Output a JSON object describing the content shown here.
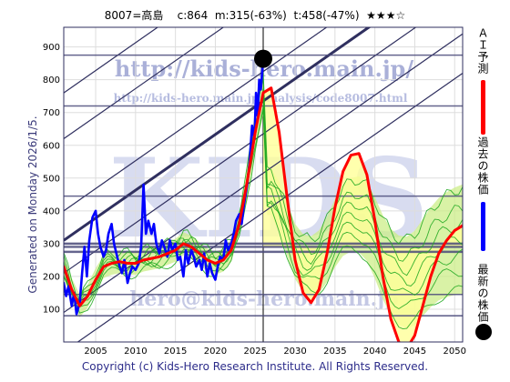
{
  "header": {
    "code_name": "8007=高島",
    "current": "c:864",
    "min": "m:315(-63%)",
    "target": "t:458(-47%)",
    "rating": "★★★☆"
  },
  "side_text": "Generated on Monday 2026/1/5.",
  "footer_text": "Copyright (c) Kids-Hero Research Institute. All Rights Reserved.",
  "watermarks": {
    "url": "http://kids-hero.main.jp/",
    "sub_url": "http://kids-hero.main.jp/analysis/code8007.html",
    "logo": "KIDS",
    "email": "hero@kids-hero.main.jp"
  },
  "legend": {
    "ai": "ＡＩ予測",
    "past": "過去の株価",
    "latest": "最新の株価"
  },
  "colors": {
    "frame": "#2f2f5f",
    "past_line": "#0000ff",
    "ai_line": "#ff0000",
    "ensemble": "#22aa22",
    "band_fill": "#ccee88",
    "yellow_fill": "#ffff99",
    "marker": "#000000"
  },
  "chart_data": {
    "type": "line",
    "xlim": [
      2001,
      2051
    ],
    "ylim": [
      0,
      960
    ],
    "xticks": [
      2005,
      2010,
      2015,
      2020,
      2025,
      2030,
      2035,
      2040,
      2045,
      2050
    ],
    "yticks": [
      100,
      200,
      300,
      400,
      500,
      600,
      700,
      800,
      900
    ],
    "horizontal_levels": [
      875,
      720,
      445,
      300,
      290,
      275,
      145,
      80
    ],
    "current_point": {
      "x": 2026.0,
      "y": 864
    },
    "series": [
      {
        "legend_key": "past",
        "x": [
          2001.0,
          2001.3,
          2001.6,
          2002.0,
          2002.3,
          2002.6,
          2003.0,
          2003.3,
          2003.6,
          2003.9,
          2004.2,
          2004.6,
          2005.0,
          2005.3,
          2005.6,
          2006.0,
          2006.3,
          2006.6,
          2007.0,
          2007.3,
          2007.6,
          2008.0,
          2008.3,
          2008.6,
          2009.0,
          2009.3,
          2009.6,
          2010.0,
          2010.4,
          2010.7,
          2011.0,
          2011.3,
          2011.6,
          2012.0,
          2012.3,
          2012.6,
          2013.0,
          2013.3,
          2013.6,
          2014.0,
          2014.3,
          2014.6,
          2015.0,
          2015.3,
          2015.6,
          2016.0,
          2016.3,
          2016.6,
          2017.0,
          2017.3,
          2017.6,
          2018.0,
          2018.3,
          2018.6,
          2019.0,
          2019.3,
          2019.6,
          2020.0,
          2020.3,
          2020.6,
          2021.0,
          2021.3,
          2021.6,
          2022.0,
          2022.3,
          2022.6,
          2023.0,
          2023.3,
          2023.6,
          2024.0,
          2024.3,
          2024.6,
          2024.9,
          2025.1,
          2025.3,
          2025.5,
          2025.7,
          2025.9,
          2026.0
        ],
        "y": [
          180,
          140,
          170,
          110,
          150,
          85,
          120,
          210,
          290,
          200,
          310,
          380,
          400,
          330,
          290,
          260,
          280,
          330,
          360,
          300,
          270,
          230,
          210,
          250,
          180,
          210,
          230,
          220,
          240,
          290,
          480,
          330,
          370,
          330,
          360,
          300,
          270,
          310,
          290,
          260,
          310,
          280,
          300,
          250,
          260,
          200,
          280,
          240,
          280,
          260,
          230,
          250,
          220,
          270,
          200,
          240,
          210,
          190,
          230,
          260,
          250,
          310,
          280,
          300,
          330,
          370,
          390,
          360,
          420,
          480,
          550,
          660,
          620,
          760,
          690,
          800,
          770,
          830,
          864
        ]
      },
      {
        "legend_key": "ai",
        "x": [
          2001,
          2002,
          2003,
          2004,
          2005,
          2006,
          2007,
          2008,
          2009,
          2010,
          2011,
          2012,
          2013,
          2014,
          2015,
          2016,
          2017,
          2018,
          2019,
          2020,
          2021,
          2022,
          2023,
          2024,
          2025,
          2026,
          2027,
          2028,
          2029,
          2030,
          2031,
          2032,
          2033,
          2034,
          2035,
          2036,
          2037,
          2038,
          2039,
          2040,
          2041,
          2042,
          2043,
          2044,
          2045,
          2046,
          2047,
          2048,
          2049,
          2050,
          2051
        ],
        "y": [
          230,
          160,
          110,
          140,
          190,
          230,
          240,
          245,
          240,
          240,
          250,
          255,
          260,
          270,
          280,
          300,
          290,
          270,
          250,
          240,
          250,
          280,
          360,
          490,
          640,
          760,
          775,
          640,
          440,
          250,
          150,
          120,
          160,
          270,
          410,
          520,
          570,
          575,
          510,
          370,
          200,
          70,
          0,
          -20,
          20,
          110,
          200,
          270,
          310,
          340,
          355
        ]
      }
    ]
  }
}
